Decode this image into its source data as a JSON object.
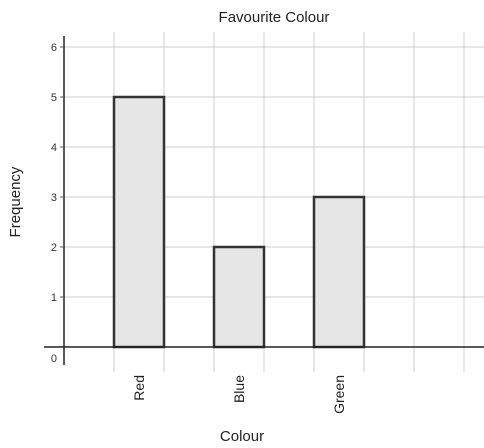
{
  "chart_data": {
    "type": "bar",
    "title": "Favourite Colour",
    "xlabel": "Colour",
    "ylabel": "Frequency",
    "categories": [
      "Red",
      "Blue",
      "Green"
    ],
    "values": [
      5,
      2,
      3
    ],
    "ylim": [
      0,
      6
    ],
    "yticks": [
      "0",
      "1",
      "2",
      "3",
      "4",
      "5",
      "6"
    ],
    "grid": true,
    "bar_fill": "#e6e6e6",
    "bar_stroke": "#333333",
    "grid_color": "#cccccc"
  }
}
